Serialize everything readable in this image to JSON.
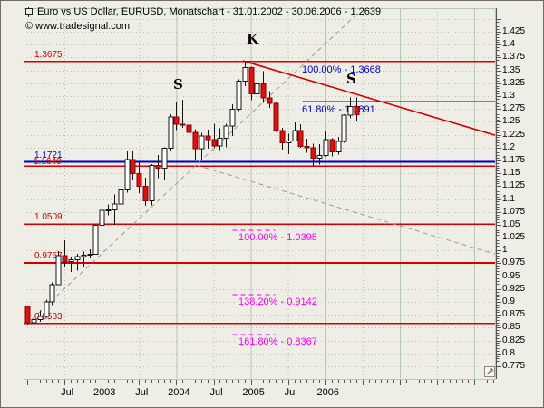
{
  "window": {
    "title": "Euro vs US Dollar, EURUSD, Monatschart - 31.01.2002 - 30.06.2006 - 1.2639",
    "watermark": "© www.tradesignal.com"
  },
  "annotations": {
    "head_label": "K",
    "left_shoulder_label": "S",
    "right_shoulder_label": "S",
    "levels": [
      {
        "label": "1.3675",
        "price": 1.3675,
        "color": "#d40000"
      },
      {
        "label": "1.1721",
        "price": 1.1721,
        "color": "#0000cc"
      },
      {
        "label": "1.1640",
        "price": 1.164,
        "color": "#d40000"
      },
      {
        "label": "1.0509",
        "price": 1.0509,
        "color": "#d40000"
      },
      {
        "label": "0.9757",
        "price": 0.9757,
        "color": "#d40000"
      },
      {
        "label": "0.8583",
        "price": 0.8583,
        "color": "#d40000"
      }
    ],
    "fib_up": [
      {
        "label": "100.00% - 1.3668",
        "price": 1.3668
      },
      {
        "label": "61.80% - 1.2891",
        "price": 1.2891
      }
    ],
    "fib_down": [
      {
        "label": "100.00% - 1.0395",
        "price": 1.0395
      },
      {
        "label": "138.20% - 0.9142",
        "price": 0.9142
      },
      {
        "label": "161.80% - 0.8367",
        "price": 0.8367
      }
    ]
  },
  "chart_data": {
    "type": "candlestick",
    "symbol": "EURUSD",
    "period": "Monatschart (monthly)",
    "date_range": "31.01.2002 - 30.06.2006",
    "last_price": 1.2639,
    "ylim": [
      0.775,
      1.425
    ],
    "y_ticks": [
      "1.425",
      "1.4",
      "1.375",
      "1.35",
      "1.325",
      "1.3",
      "1.275",
      "1.25",
      "1.225",
      "1.2",
      "1.175",
      "1.15",
      "1.125",
      "1.1",
      "1.075",
      "1.05",
      "1.025",
      "1",
      "0.975",
      "0.95",
      "0.925",
      "0.9",
      "0.875",
      "0.85",
      "0.825",
      "0.8",
      "0.775"
    ],
    "x_ticks": [
      {
        "label": "Jul",
        "month": 6
      },
      {
        "label": "2003",
        "month": 12
      },
      {
        "label": "Jul",
        "month": 18
      },
      {
        "label": "2004",
        "month": 24
      },
      {
        "label": "Jul",
        "month": 30
      },
      {
        "label": "2005",
        "month": 36
      },
      {
        "label": "Jul",
        "month": 42
      },
      {
        "label": "2006",
        "month": 48
      }
    ],
    "start_month": "2002-01",
    "candles": [
      [
        0.8913,
        0.8917,
        0.8562,
        0.8593
      ],
      [
        0.8593,
        0.8785,
        0.8565,
        0.8658
      ],
      [
        0.8658,
        0.8836,
        0.8616,
        0.8716
      ],
      [
        0.8716,
        0.9045,
        0.8702,
        0.8997
      ],
      [
        0.8997,
        0.9382,
        0.8942,
        0.9336
      ],
      [
        0.9336,
        0.999,
        0.9326,
        0.9902
      ],
      [
        0.9902,
        1.02,
        0.9685,
        0.9784
      ],
      [
        0.9784,
        0.9885,
        0.9582,
        0.9817
      ],
      [
        0.9817,
        0.9935,
        0.9605,
        0.9879
      ],
      [
        0.9879,
        0.9975,
        0.9683,
        0.9904
      ],
      [
        0.9904,
        1.0025,
        0.9848,
        0.9928
      ],
      [
        0.9928,
        1.0507,
        0.9928,
        1.0487
      ],
      [
        1.0487,
        1.0935,
        1.0332,
        1.0776
      ],
      [
        1.0776,
        1.0895,
        1.0683,
        1.079
      ],
      [
        1.079,
        1.1085,
        1.0502,
        1.09
      ],
      [
        1.09,
        1.123,
        1.084,
        1.118
      ],
      [
        1.118,
        1.1933,
        1.1127,
        1.1766
      ],
      [
        1.1766,
        1.1932,
        1.1369,
        1.1496
      ],
      [
        1.1496,
        1.1715,
        1.1111,
        1.1248
      ],
      [
        1.1248,
        1.1417,
        1.0864,
        1.0968
      ],
      [
        1.0968,
        1.1679,
        1.0875,
        1.165
      ],
      [
        1.165,
        1.1858,
        1.1402,
        1.1596
      ],
      [
        1.1596,
        1.2005,
        1.1377,
        1.199
      ],
      [
        1.199,
        1.2648,
        1.1938,
        1.2592
      ],
      [
        1.2592,
        1.2898,
        1.2337,
        1.2452
      ],
      [
        1.2452,
        1.2927,
        1.2382,
        1.244
      ],
      [
        1.244,
        1.2441,
        1.2048,
        1.2296
      ],
      [
        1.2296,
        1.2358,
        1.177,
        1.1982
      ],
      [
        1.1982,
        1.2285,
        1.1759,
        1.222
      ],
      [
        1.222,
        1.2348,
        1.1976,
        1.2154
      ],
      [
        1.2154,
        1.2462,
        1.1984,
        1.2032
      ],
      [
        1.2032,
        1.237,
        1.1955,
        1.2182
      ],
      [
        1.2182,
        1.246,
        1.2007,
        1.242
      ],
      [
        1.242,
        1.284,
        1.2224,
        1.2746
      ],
      [
        1.2746,
        1.3329,
        1.2705,
        1.329
      ],
      [
        1.329,
        1.3666,
        1.3194,
        1.3556
      ],
      [
        1.3556,
        1.3576,
        1.2924,
        1.304
      ],
      [
        1.304,
        1.3279,
        1.2732,
        1.3234
      ],
      [
        1.3234,
        1.3483,
        1.2866,
        1.2964
      ],
      [
        1.2964,
        1.3093,
        1.2767,
        1.2862
      ],
      [
        1.2862,
        1.2898,
        1.2305,
        1.233
      ],
      [
        1.233,
        1.2385,
        1.1957,
        1.2092
      ],
      [
        1.2092,
        1.2265,
        1.1868,
        1.2128
      ],
      [
        1.2128,
        1.2488,
        1.212,
        1.2332
      ],
      [
        1.2332,
        1.2457,
        1.1996,
        1.2022
      ],
      [
        1.2022,
        1.2175,
        1.1899,
        1.1996
      ],
      [
        1.1996,
        1.2074,
        1.164,
        1.179
      ],
      [
        1.179,
        1.2069,
        1.1671,
        1.1842
      ],
      [
        1.1842,
        1.2323,
        1.1822,
        1.2158
      ],
      [
        1.2158,
        1.2178,
        1.1826,
        1.192
      ],
      [
        1.192,
        1.221,
        1.1862,
        1.2118
      ],
      [
        1.2118,
        1.2651,
        1.2089,
        1.2628
      ],
      [
        1.2628,
        1.2974,
        1.2569,
        1.28
      ],
      [
        1.28,
        1.2977,
        1.2522,
        1.2639
      ]
    ],
    "trendlines": [
      {
        "name": "downtrend-resistance",
        "style": "solid",
        "color": "#d40000",
        "width": 1.6,
        "points": [
          [
            34.74,
            1.3685
          ],
          [
            75.33,
            1.224
          ]
        ]
      },
      {
        "name": "uptrend-support",
        "style": "dashed",
        "color": "#9a9a9a",
        "width": 1,
        "points": [
          [
            -0.15,
            0.856
          ],
          [
            52.7,
            1.455
          ]
        ]
      },
      {
        "name": "downward-projection",
        "style": "dashed",
        "color": "#9a9a9a",
        "width": 1,
        "points": [
          [
            27.2,
            1.166
          ],
          [
            75.33,
            0.993
          ]
        ]
      }
    ],
    "fib_up_span_months": [
      44.3,
      75.33
    ],
    "fib_down_span_months": [
      33.1,
      39.9
    ],
    "colors": {
      "up_candle": "#ffffff",
      "down_candle": "#dd1111",
      "wick": "#141414",
      "level_red": "#d40000",
      "level_blue": "#0000cc",
      "fib_magenta": "#ff00ff",
      "grid_green": "#b5c7b5",
      "grid_dot": "#bcbcb2"
    }
  }
}
